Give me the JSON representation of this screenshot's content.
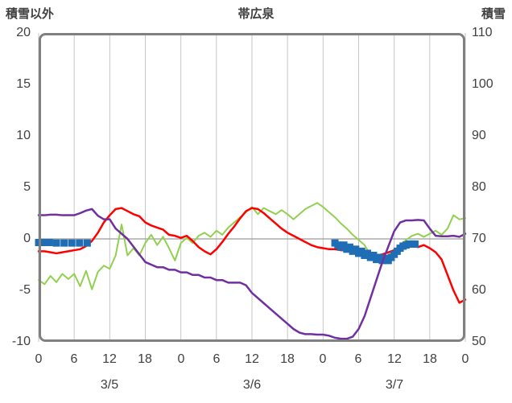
{
  "chart_data": {
    "type": "line",
    "title": "帯広泉",
    "left_axis": {
      "label": "積雪以外",
      "range": [
        -10,
        20
      ],
      "ticks": [
        "20",
        "15",
        "10",
        "5",
        "0",
        "-5",
        "-10"
      ]
    },
    "right_axis": {
      "label": "積雪",
      "range": [
        50,
        110
      ],
      "ticks": [
        "110",
        "100",
        "90",
        "80",
        "70",
        "60",
        "50"
      ]
    },
    "x_axis": {
      "range_hours": [
        0,
        72
      ],
      "tick_interval_hours": 6,
      "ticks": [
        "0",
        "6",
        "12",
        "18",
        "0",
        "6",
        "12",
        "18",
        "0",
        "6",
        "12",
        "18",
        "0"
      ],
      "date_labels": [
        "3/5",
        "3/6",
        "3/7"
      ]
    },
    "colors": {
      "grid": "#C6C6C6",
      "border": "#808080",
      "zero_line": "#9B9B9B",
      "text": "#404040"
    },
    "series": [
      {
        "name": "green-line",
        "color": "#92D050",
        "axis": "left",
        "width": 2,
        "x_step_hours": 1,
        "values": [
          -4.0,
          -4.4,
          -3.6,
          -4.2,
          -3.4,
          -3.9,
          -3.4,
          -4.6,
          -3.1,
          -4.9,
          -3.2,
          -2.6,
          -2.9,
          -1.6,
          1.4,
          -1.6,
          -0.9,
          -1.6,
          -0.4,
          0.4,
          -0.6,
          0.2,
          -0.9,
          -2.1,
          -0.4,
          0.1,
          -0.4,
          0.3,
          0.6,
          0.2,
          0.8,
          0.4,
          1.1,
          1.6,
          2.1,
          2.6,
          3.1,
          2.4,
          3.0,
          2.7,
          2.4,
          2.8,
          2.4,
          1.9,
          2.4,
          2.9,
          3.2,
          3.5,
          3.1,
          2.6,
          2.1,
          1.5,
          1.0,
          0.4,
          -0.1,
          -0.6,
          -1.6,
          -2.1,
          -1.9,
          -1.6,
          -1.1,
          -0.6,
          -0.1,
          0.3,
          0.5,
          0.2,
          0.5,
          0.8,
          0.4,
          1.0,
          2.3,
          1.9,
          2.0
        ]
      },
      {
        "name": "red-line",
        "color": "#FF0000",
        "axis": "left",
        "width": 2.5,
        "x_step_hours": 1,
        "values": [
          -1.2,
          -1.2,
          -1.3,
          -1.4,
          -1.3,
          -1.2,
          -1.1,
          -1.0,
          -0.7,
          -0.2,
          0.6,
          1.6,
          2.3,
          2.9,
          3.0,
          2.7,
          2.4,
          2.2,
          1.6,
          1.3,
          1.1,
          0.9,
          0.4,
          0.3,
          0.1,
          0.3,
          -0.2,
          -0.8,
          -1.2,
          -1.5,
          -1.0,
          -0.3,
          0.5,
          1.2,
          2.0,
          2.7,
          3.0,
          2.9,
          2.5,
          2.0,
          1.5,
          1.0,
          0.6,
          0.3,
          0.0,
          -0.3,
          -0.6,
          -0.8,
          -0.9,
          -1.0,
          -1.0,
          -1.1,
          -1.1,
          -1.2,
          -1.2,
          -1.3,
          -1.4,
          -1.6,
          -1.5,
          -1.3,
          -1.1,
          -0.7,
          -0.5,
          -0.6,
          -0.8,
          -0.6,
          -0.9,
          -1.3,
          -2.0,
          -3.5,
          -5.0,
          -6.2,
          -5.9
        ]
      },
      {
        "name": "blue-square-markers",
        "color": "#1F6EB5",
        "axis": "left",
        "marker_size": 9,
        "points": [
          [
            0,
            -0.35
          ],
          [
            0.6,
            -0.35
          ],
          [
            1.2,
            -0.35
          ],
          [
            1.8,
            -0.35
          ],
          [
            3.0,
            -0.4
          ],
          [
            4.3,
            -0.4
          ],
          [
            5.6,
            -0.4
          ],
          [
            6.9,
            -0.4
          ],
          [
            8.2,
            -0.4
          ],
          [
            50,
            -0.4
          ],
          [
            50.5,
            -0.6
          ],
          [
            51,
            -0.8
          ],
          [
            51.5,
            -0.6
          ],
          [
            52,
            -1.0
          ],
          [
            52.5,
            -0.8
          ],
          [
            53,
            -1.2
          ],
          [
            53.5,
            -1.0
          ],
          [
            54,
            -1.4
          ],
          [
            54.5,
            -1.2
          ],
          [
            55,
            -1.6
          ],
          [
            55.5,
            -1.4
          ],
          [
            56,
            -1.8
          ],
          [
            56.5,
            -1.6
          ],
          [
            57,
            -2.0
          ],
          [
            57.5,
            -1.8
          ],
          [
            58,
            -2.1
          ],
          [
            58.5,
            -1.9
          ],
          [
            59,
            -2.1
          ],
          [
            59.5,
            -1.8
          ],
          [
            60,
            -1.5
          ],
          [
            60.5,
            -1.2
          ],
          [
            61,
            -0.9
          ],
          [
            61.5,
            -0.7
          ],
          [
            62,
            -0.6
          ],
          [
            62.5,
            -0.5
          ],
          [
            63,
            -0.5
          ],
          [
            63.5,
            -0.5
          ]
        ]
      },
      {
        "name": "purple-line",
        "color": "#7030A0",
        "axis": "right",
        "width": 2.5,
        "x_step_hours": 1,
        "values": [
          74.6,
          74.6,
          74.7,
          74.7,
          74.6,
          74.6,
          74.6,
          75.0,
          75.5,
          75.8,
          74.5,
          73.8,
          73.8,
          72.0,
          71.0,
          70.0,
          68.5,
          67.0,
          65.5,
          65.0,
          64.5,
          64.5,
          64.0,
          64.0,
          63.5,
          63.5,
          63.0,
          63.0,
          62.5,
          62.5,
          62.0,
          62.0,
          61.5,
          61.5,
          61.5,
          61.0,
          59.5,
          58.5,
          57.5,
          56.5,
          55.5,
          54.5,
          53.5,
          52.5,
          51.8,
          51.5,
          51.5,
          51.4,
          51.4,
          51.2,
          50.8,
          50.6,
          50.6,
          51.0,
          52.5,
          55.0,
          58.5,
          62.0,
          65.5,
          68.5,
          71.5,
          73.2,
          73.6,
          73.6,
          73.7,
          73.6,
          72.0,
          70.6,
          70.5,
          70.5,
          70.6,
          70.4,
          71.0
        ]
      }
    ]
  }
}
